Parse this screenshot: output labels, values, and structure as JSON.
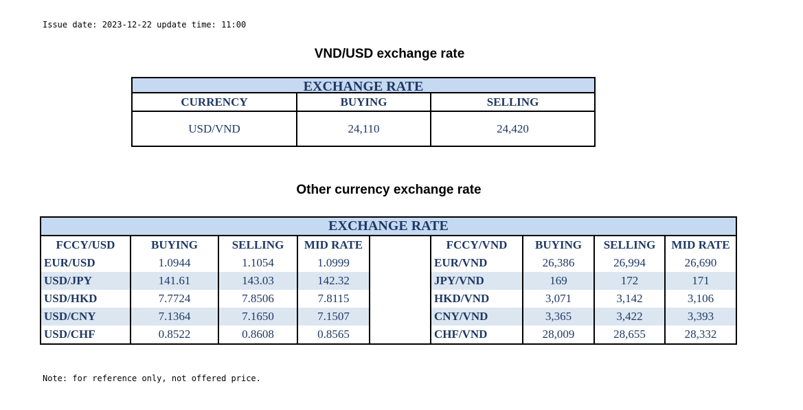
{
  "header": {
    "issue_line": "Issue date: 2023-12-22 update time: 11:00"
  },
  "vnd_usd": {
    "title": "VND/USD exchange rate",
    "band": "EXCHANGE RATE",
    "columns": [
      "CURRENCY",
      "BUYING",
      "SELLING"
    ],
    "row": {
      "currency": "USD/VND",
      "buying": "24,110",
      "selling": "24,420"
    }
  },
  "other": {
    "title": "Other currency exchange rate",
    "band": "EXCHANGE  RATE",
    "left_columns": [
      "FCCY/USD",
      "BUYING",
      "SELLING",
      "MID RATE"
    ],
    "right_columns": [
      "FCCY/VND",
      "BUYING",
      "SELLING",
      "MID RATE"
    ],
    "rows": [
      {
        "usd_pair": "EUR/USD",
        "usd_buy": "1.0944",
        "usd_sell": "1.1054",
        "usd_mid": "1.0999",
        "vnd_pair": "EUR/VND",
        "vnd_buy": "26,386",
        "vnd_sell": "26,994",
        "vnd_mid": "26,690"
      },
      {
        "usd_pair": "USD/JPY",
        "usd_buy": "141.61",
        "usd_sell": "143.03",
        "usd_mid": "142.32",
        "vnd_pair": "JPY/VND",
        "vnd_buy": "169",
        "vnd_sell": "172",
        "vnd_mid": "171"
      },
      {
        "usd_pair": "USD/HKD",
        "usd_buy": "7.7724",
        "usd_sell": "7.8506",
        "usd_mid": "7.8115",
        "vnd_pair": "HKD/VND",
        "vnd_buy": "3,071",
        "vnd_sell": "3,142",
        "vnd_mid": "3,106"
      },
      {
        "usd_pair": "USD/CNY",
        "usd_buy": "7.1364",
        "usd_sell": "7.1650",
        "usd_mid": "7.1507",
        "vnd_pair": "CNY/VND",
        "vnd_buy": "3,365",
        "vnd_sell": "3,422",
        "vnd_mid": "3,393"
      },
      {
        "usd_pair": "USD/CHF",
        "usd_buy": "0.8522",
        "usd_sell": "0.8608",
        "usd_mid": "0.8565",
        "vnd_pair": "CHF/VND",
        "vnd_buy": "28,009",
        "vnd_sell": "28,655",
        "vnd_mid": "28,332"
      }
    ]
  },
  "footer": {
    "note": "Note: for reference only, not offered price."
  },
  "colors": {
    "header_band": "#c5d9f1",
    "alt_row": "#dce6f1",
    "text": "#1f3864"
  }
}
